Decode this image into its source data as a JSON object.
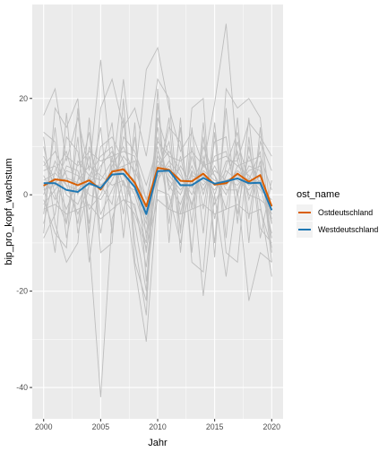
{
  "chart_data": {
    "type": "line",
    "xlabel": "Jahr",
    "ylabel": "bip_pro_kopf_wachstum",
    "xlim": [
      1999.0,
      2021.0
    ],
    "ylim": [
      -46.5,
      39.5
    ],
    "x_ticks": [
      2000,
      2005,
      2010,
      2015,
      2020
    ],
    "x_tick_labels": [
      "2000",
      "2005",
      "2010",
      "2015",
      "2020"
    ],
    "y_ticks": [
      -40,
      -20,
      0,
      20
    ],
    "y_tick_labels": [
      "-40",
      "-20",
      "0",
      "20"
    ],
    "grid": true,
    "legend": {
      "title": "ost_name",
      "position": "right",
      "entries": [
        "Ostdeutschland",
        "Westdeutschland"
      ]
    },
    "colors": {
      "panel_background": "#ebebeb",
      "grid_major": "#ffffff",
      "background_lines": "#bebebe",
      "Ostdeutschland": "#d95f02",
      "Westdeutschland": "#1f78b4"
    },
    "x": [
      2000,
      2001,
      2002,
      2003,
      2004,
      2005,
      2006,
      2007,
      2008,
      2009,
      2010,
      2011,
      2012,
      2013,
      2014,
      2015,
      2016,
      2017,
      2018,
      2019,
      2020
    ],
    "series": [
      {
        "name": "Ostdeutschland",
        "values": [
          1.9,
          3.2,
          2.9,
          2.0,
          3.0,
          1.1,
          4.8,
          5.3,
          2.5,
          -2.4,
          5.6,
          5.2,
          2.9,
          2.8,
          4.4,
          2.1,
          2.4,
          4.4,
          2.7,
          4.1,
          -2.4
        ]
      },
      {
        "name": "Westdeutschland",
        "values": [
          2.4,
          2.4,
          1.0,
          0.6,
          2.4,
          1.4,
          4.2,
          4.4,
          1.6,
          -4.0,
          4.9,
          5.0,
          2.0,
          2.0,
          3.5,
          2.3,
          2.8,
          3.4,
          2.4,
          2.5,
          -3.2
        ]
      }
    ],
    "background_series": [
      [
        3.0,
        4.5,
        2.0,
        1.0,
        3.5,
        1.0,
        5.0,
        6.0,
        2.0,
        -3.0,
        7.0,
        5.0,
        2.0,
        3.0,
        4.0,
        2.0,
        3.0,
        4.0,
        2.0,
        3.0,
        -4.0
      ],
      [
        1.0,
        2.0,
        3.5,
        2.5,
        2.0,
        2.0,
        4.0,
        5.0,
        3.0,
        -5.0,
        4.0,
        6.0,
        3.0,
        1.5,
        5.0,
        3.0,
        2.0,
        5.0,
        3.0,
        2.0,
        -2.0
      ],
      [
        5.0,
        6.0,
        0.0,
        -2.0,
        4.0,
        3.0,
        7.0,
        4.0,
        0.0,
        -8.0,
        9.0,
        4.0,
        1.0,
        4.0,
        3.0,
        1.0,
        5.0,
        3.0,
        1.0,
        4.0,
        -6.0
      ],
      [
        -2.0,
        1.0,
        5.0,
        4.0,
        0.0,
        -1.0,
        3.0,
        8.0,
        5.0,
        -1.0,
        3.0,
        7.0,
        4.0,
        0.0,
        6.0,
        4.0,
        0.0,
        6.0,
        4.0,
        1.0,
        -1.0
      ],
      [
        8.0,
        3.0,
        -3.0,
        3.0,
        6.0,
        4.0,
        2.0,
        3.0,
        -3.0,
        -10.0,
        12.0,
        2.0,
        -2.0,
        5.0,
        2.0,
        5.0,
        3.0,
        2.0,
        5.0,
        6.0,
        -9.0
      ],
      [
        0.0,
        7.0,
        2.0,
        -4.0,
        2.0,
        6.0,
        9.0,
        2.0,
        1.0,
        -6.0,
        6.0,
        9.0,
        5.0,
        -2.0,
        7.0,
        0.0,
        7.0,
        7.0,
        0.0,
        -1.0,
        -3.0
      ],
      [
        4.0,
        -1.0,
        6.0,
        5.0,
        -3.0,
        0.0,
        6.0,
        10.0,
        4.0,
        -12.0,
        8.0,
        3.0,
        0.0,
        6.0,
        1.0,
        6.0,
        1.0,
        1.0,
        6.0,
        5.0,
        -5.0
      ],
      [
        -6.0,
        5.0,
        9.0,
        0.0,
        8.0,
        -4.0,
        1.0,
        6.0,
        7.0,
        -4.0,
        14.0,
        1.0,
        6.0,
        2.0,
        8.0,
        -2.0,
        4.0,
        9.0,
        -1.0,
        7.0,
        -11.0
      ],
      [
        10.0,
        0.0,
        -6.0,
        7.0,
        4.0,
        8.0,
        10.0,
        -1.0,
        -2.0,
        -15.0,
        5.0,
        11.0,
        -4.0,
        8.0,
        0.0,
        8.0,
        9.0,
        0.0,
        8.0,
        2.0,
        -8.0
      ],
      [
        6.0,
        9.0,
        4.0,
        -6.0,
        10.0,
        2.0,
        -2.0,
        12.0,
        9.0,
        2.0,
        10.0,
        -3.0,
        8.0,
        -3.0,
        10.0,
        4.0,
        -3.0,
        11.0,
        3.0,
        9.0,
        -14.0
      ],
      [
        -9.0,
        -4.0,
        12.0,
        9.0,
        -6.0,
        10.0,
        12.0,
        7.0,
        -6.0,
        -20.0,
        16.0,
        8.0,
        -7.0,
        10.0,
        -3.0,
        11.0,
        12.0,
        -4.0,
        10.0,
        -2.0,
        -17.0
      ],
      [
        13.0,
        11.0,
        -9.0,
        3.0,
        13.0,
        -8.0,
        8.0,
        -4.0,
        12.0,
        -9.0,
        3.0,
        14.0,
        11.0,
        -6.0,
        12.0,
        -5.0,
        6.0,
        13.0,
        -5.0,
        11.0,
        5.0
      ],
      [
        16.5,
        22.0,
        7.0,
        16.0,
        5.0,
        28.0,
        4.0,
        24.0,
        3.0,
        26.0,
        30.5,
        18.0,
        9.0,
        13.0,
        6.0,
        19.0,
        35.5,
        7.0,
        15.0,
        12.0,
        8.0
      ],
      [
        -1.0,
        -8.0,
        -11.0,
        18.0,
        -10.0,
        -42.0,
        -5.0,
        3.0,
        -15.0,
        -30.5,
        1.0,
        0.0,
        -10.0,
        5.0,
        -21.0,
        0.0,
        -17.0,
        1.0,
        -22.0,
        -12.0,
        -14.0
      ],
      [
        2.0,
        -12.0,
        17.0,
        -8.0,
        2.0,
        14.0,
        -8.0,
        16.0,
        -10.0,
        -25.0,
        19.0,
        -6.0,
        14.0,
        -12.0,
        15.0,
        -10.0,
        18.0,
        -6.0,
        16.0,
        -7.0,
        -10.0
      ],
      [
        -4.0,
        14.0,
        -6.0,
        12.0,
        -14.0,
        5.0,
        15.0,
        -9.0,
        15.0,
        -18.0,
        2.0,
        16.0,
        -12.0,
        14.0,
        -8.0,
        15.0,
        -9.0,
        16.0,
        -10.0,
        14.0,
        -12.0
      ],
      [
        12.0,
        -6.0,
        -14.0,
        -10.0,
        16.0,
        -12.0,
        -10.0,
        20.0,
        -14.0,
        -22.0,
        22.0,
        -10.0,
        16.0,
        -14.0,
        -16.0,
        13.0,
        -12.0,
        -14.0,
        12.0,
        -9.0,
        3.0
      ],
      [
        -8.0,
        18.0,
        14.0,
        20.0,
        -8.0,
        18.0,
        24.0,
        14.0,
        18.0,
        8.0,
        24.0,
        20.0,
        -8.0,
        18.0,
        20.0,
        -13.0,
        22.0,
        18.0,
        20.0,
        16.0,
        -6.0
      ],
      [
        7.0,
        2.0,
        8.0,
        6.0,
        9.0,
        7.0,
        8.0,
        9.0,
        8.0,
        -1.0,
        11.0,
        8.0,
        7.0,
        9.0,
        6.0,
        7.0,
        8.0,
        6.0,
        7.0,
        8.0,
        1.0
      ],
      [
        -3.0,
        -2.0,
        -4.0,
        -3.0,
        -2.0,
        -5.0,
        -3.0,
        -1.0,
        -4.0,
        -11.0,
        -1.0,
        -3.0,
        -4.0,
        -3.0,
        -2.0,
        -4.0,
        -3.0,
        -2.0,
        -4.0,
        -3.0,
        -11.0
      ]
    ]
  }
}
